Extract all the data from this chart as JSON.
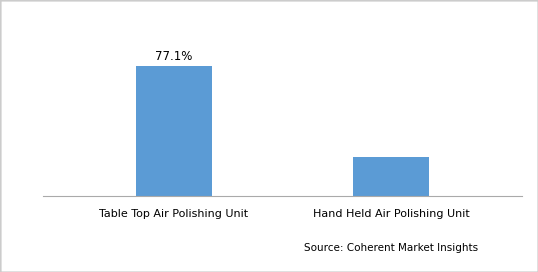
{
  "categories": [
    "Table Top Air Polishing Unit",
    "Hand Held Air Polishing Unit"
  ],
  "values": [
    77.1,
    22.9
  ],
  "bar_color": "#5B9BD5",
  "annotation_label": "77.1%",
  "annotation_bar_index": 0,
  "source_text": "Source: Coherent Market Insights",
  "ylim": [
    0,
    100
  ],
  "bar_width": 0.35,
  "figsize": [
    5.38,
    2.72
  ],
  "dpi": 100,
  "annotation_fontsize": 8.5,
  "tick_fontsize": 8,
  "source_fontsize": 7.5
}
